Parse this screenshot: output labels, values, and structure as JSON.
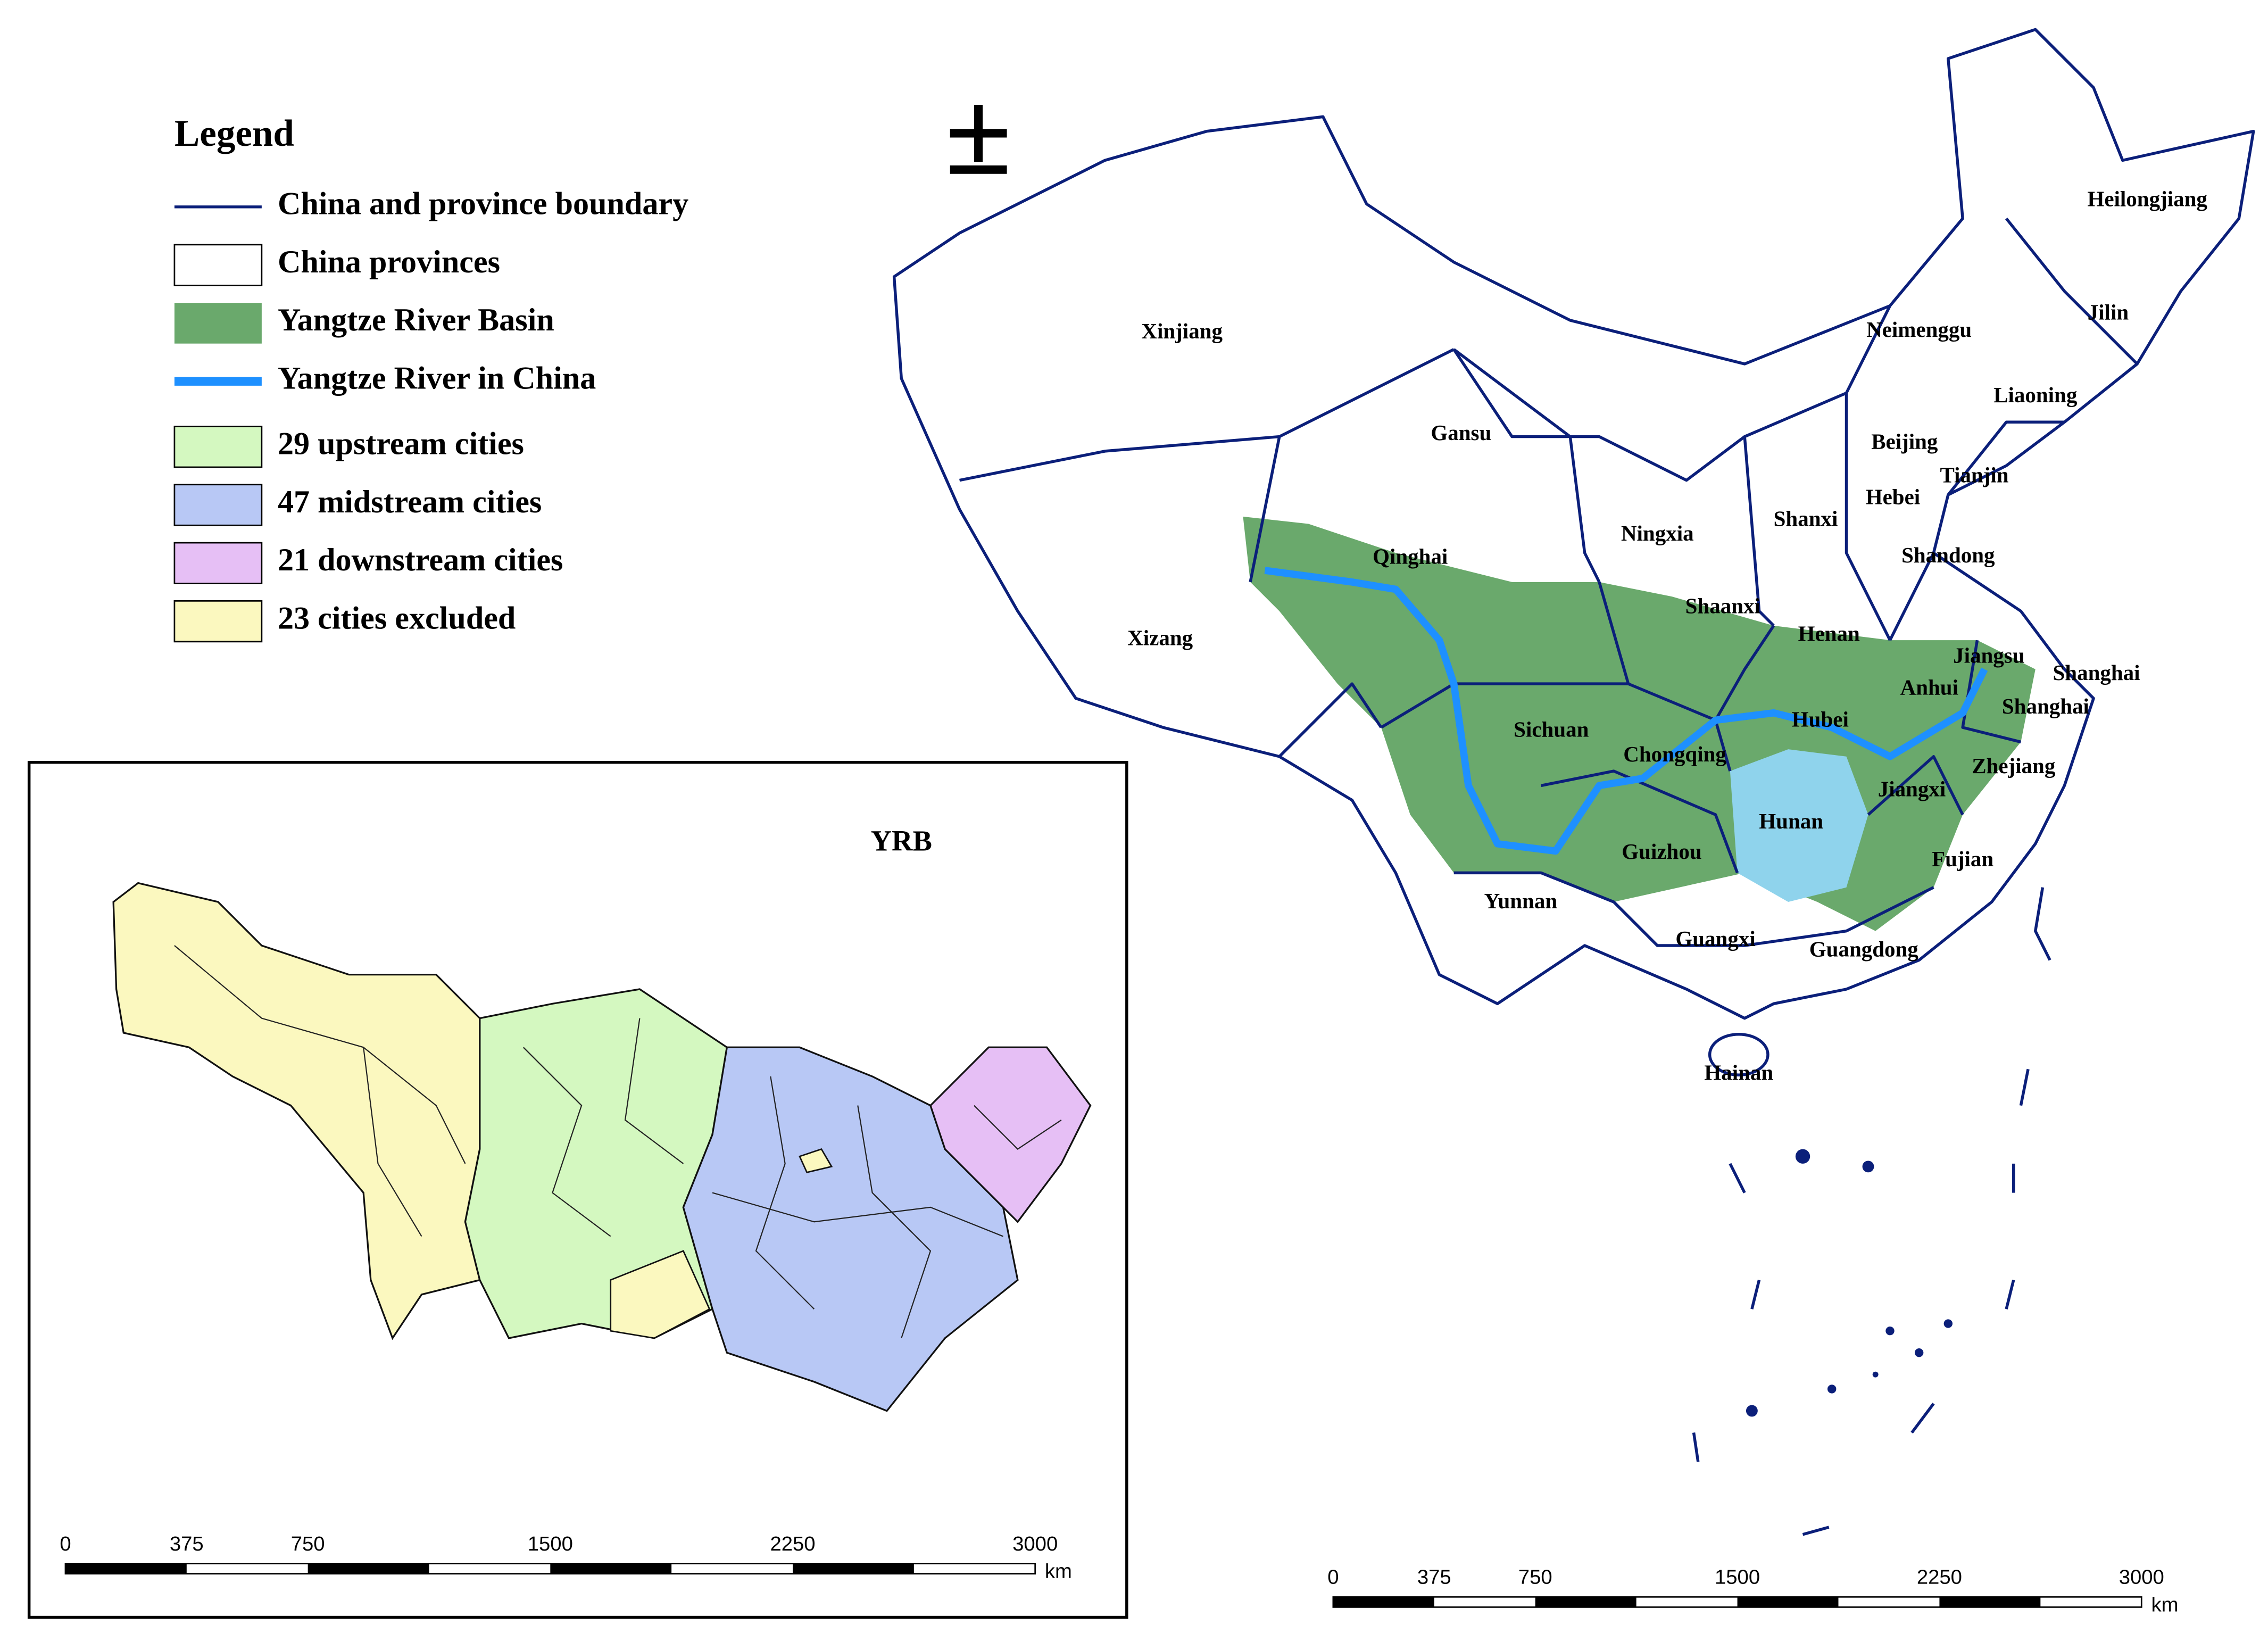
{
  "legend": {
    "title": "Legend",
    "items": [
      {
        "label": "China and province boundary"
      },
      {
        "label": "China provinces"
      },
      {
        "label": "Yangtze River Basin"
      },
      {
        "label": "Yangtze River in China"
      },
      {
        "label": "29 upstream cities"
      },
      {
        "label": "47 midstream cities"
      },
      {
        "label": "21 downstream cities"
      },
      {
        "label": "23 cities excluded"
      }
    ]
  },
  "north_arrow": "±",
  "map": {
    "labels": [
      "Xinjiang",
      "Gansu",
      "Qinghai",
      "Xizang",
      "Neimenggu",
      "Heilongjiang",
      "Jilin",
      "Liaoning",
      "Beijing",
      "Tianjin",
      "Hebei",
      "Shanxi",
      "Ningxia",
      "Shandong",
      "Shaanxi",
      "Henan",
      "Jiangsu",
      "Anhui",
      "Shanghai",
      "Shanghai",
      "Sichuan",
      "Hubei",
      "Chongqing",
      "Zhejiang",
      "Jiangxi",
      "Hunan",
      "Guizhou",
      "Fujian",
      "Yunnan",
      "Guangxi",
      "Guangdong",
      "Hainan"
    ]
  },
  "inset": {
    "title": "YRB"
  },
  "scale_bars": [
    {
      "labels": [
        0,
        375,
        750,
        1500,
        2250,
        3000
      ],
      "unit": "km"
    },
    {
      "labels": [
        0,
        375,
        750,
        1500,
        2250,
        3000
      ],
      "unit": "km"
    }
  ]
}
